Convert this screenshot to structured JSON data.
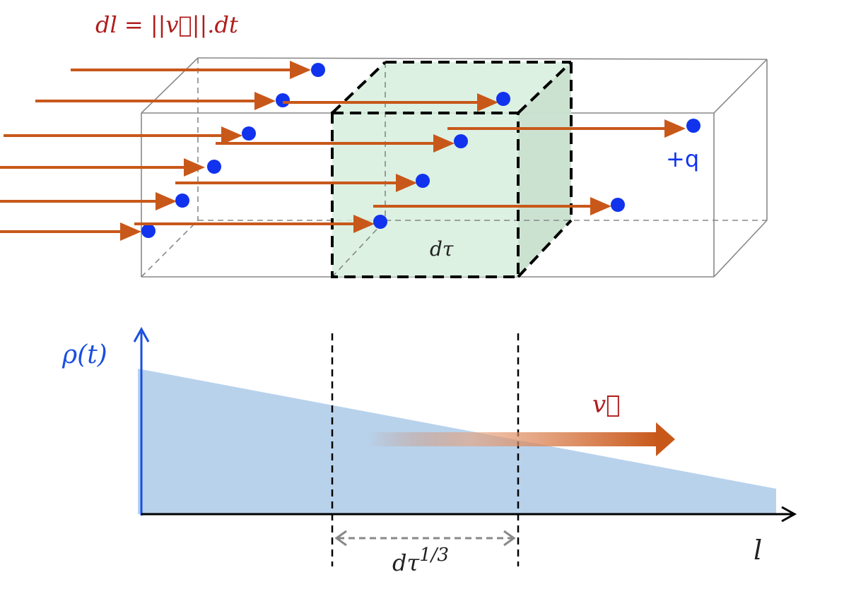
{
  "formula_top": "dl = ||v⃗||.dt",
  "volume_label": "dτ",
  "charge_label": "+q",
  "density_label": "ρ(t)",
  "velocity_label": "v⃗",
  "interval_label_base": "dτ",
  "interval_label_exp": "1/3",
  "length_axis_label": "l",
  "colors": {
    "arrow": "#c8581a",
    "charge": "#1133ee",
    "formula": "#b01c1c",
    "density_fill": "#b8d2ec",
    "axis_blue": "#1a4fe0",
    "volume_fill": "#d6eedd"
  }
}
